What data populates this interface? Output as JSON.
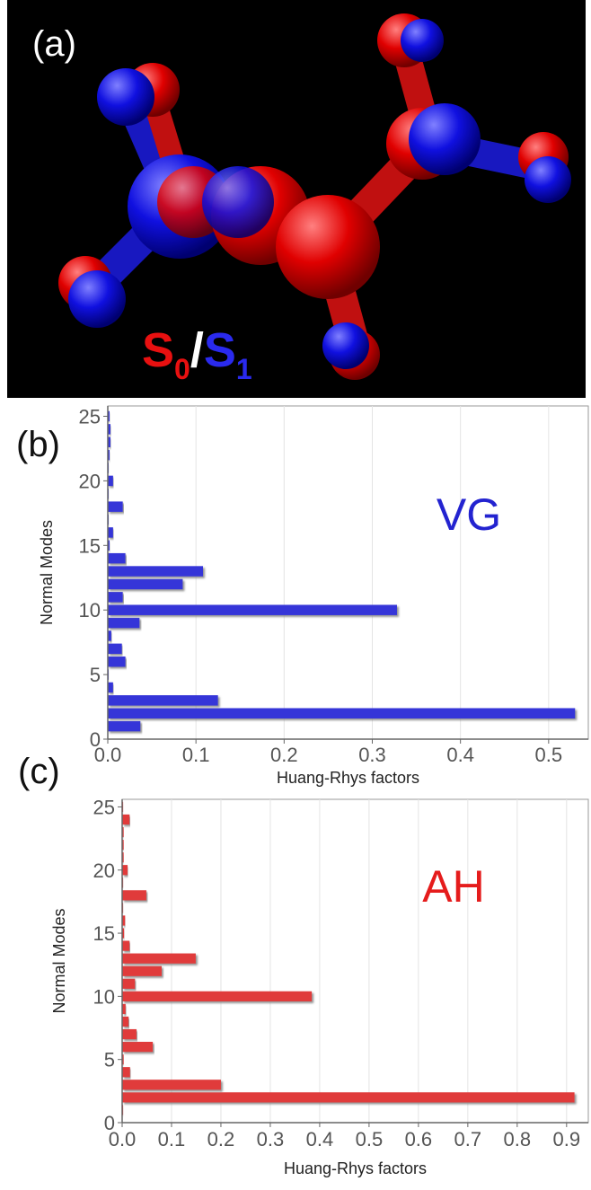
{
  "panel_a": {
    "label": "(a)",
    "legend": [
      "S",
      "0",
      "/",
      "S",
      "1"
    ]
  },
  "chart_data": [
    {
      "type": "bar",
      "orientation": "horizontal",
      "panel_label": "(b)",
      "annotation": "VG",
      "x_label": "Huang-Rhys factors",
      "y_label": "Normal Modes",
      "color": "#3535d8",
      "annotation_color": "#2323d0",
      "categories": [
        1,
        2,
        3,
        4,
        5,
        6,
        7,
        8,
        9,
        10,
        11,
        12,
        13,
        14,
        15,
        16,
        17,
        18,
        19,
        20,
        21,
        22,
        23,
        24,
        25
      ],
      "values": [
        0.037,
        0.53,
        0.125,
        0.006,
        0.001,
        0.02,
        0.016,
        0.004,
        0.036,
        0.328,
        0.017,
        0.085,
        0.108,
        0.02,
        0.002,
        0.006,
        0.001,
        0.017,
        0.001,
        0.006,
        0.001,
        0.002,
        0.003,
        0.003,
        0.002
      ],
      "xlim": [
        0,
        0.545
      ],
      "xticks": [
        {
          "value": 0,
          "label": "0.0"
        },
        0.1,
        0.2,
        0.3,
        0.4,
        0.5
      ],
      "ylim": [
        0,
        25.8
      ],
      "yticks": [
        0,
        5,
        10,
        15,
        20,
        25
      ],
      "grid": true
    },
    {
      "type": "bar",
      "orientation": "horizontal",
      "panel_label": "(c)",
      "annotation": "AH",
      "x_label": "Huang-Rhys factors",
      "y_label": "Normal Modes",
      "color": "#e03a3a",
      "annotation_color": "#e51c1c",
      "categories": [
        1,
        2,
        3,
        4,
        5,
        6,
        7,
        8,
        9,
        10,
        11,
        12,
        13,
        14,
        15,
        16,
        17,
        18,
        19,
        20,
        21,
        22,
        23,
        24,
        25
      ],
      "values": [
        0.002,
        0.916,
        0.2,
        0.016,
        0.003,
        0.062,
        0.029,
        0.013,
        0.007,
        0.384,
        0.026,
        0.08,
        0.149,
        0.015,
        0.004,
        0.006,
        0.002,
        0.049,
        0.002,
        0.011,
        0.003,
        0.003,
        0.003,
        0.015,
        0.002
      ],
      "xlim": [
        0,
        0.944
      ],
      "xticks": [
        {
          "value": 0,
          "label": "0.0"
        },
        0.1,
        0.2,
        0.3,
        0.4,
        0.5,
        0.6,
        0.7,
        0.8,
        0.9
      ],
      "ylim": [
        0,
        25.6
      ],
      "yticks": [
        0,
        5,
        10,
        15,
        20,
        25
      ],
      "grid": true
    }
  ]
}
